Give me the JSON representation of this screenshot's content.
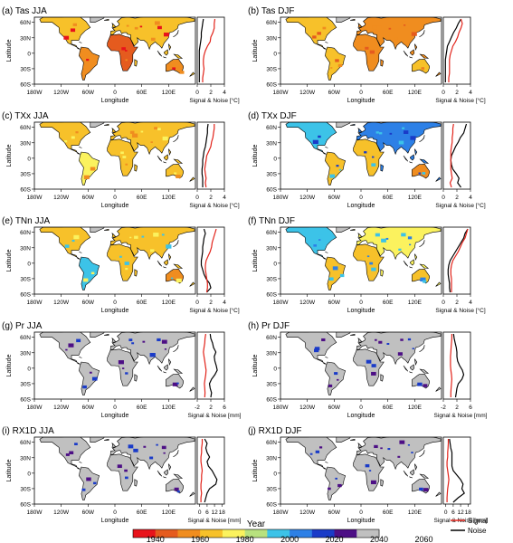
{
  "chart_data": [
    {
      "type": "map",
      "panel": "(a) Tas JJA",
      "xlabel": "Longitude",
      "ylabel": "Latitude",
      "x_ticks": [
        "180W",
        "120W",
        "60W",
        "0",
        "60E",
        "120E"
      ],
      "y_ticks": [
        "60N",
        "30N",
        "0",
        "30S",
        "60S"
      ],
      "side_xlabel": "Signal & Noise [°C]",
      "side_ticks": [
        "0",
        "2",
        "4"
      ],
      "side_xlim": [
        0,
        4
      ],
      "signal": [
        2.6,
        2.5,
        2.5,
        2.3,
        2.0,
        1.9,
        1.5,
        1.2,
        1.0,
        0.9,
        0.9,
        1.0,
        0.9,
        0.8,
        0.8
      ],
      "noise": [
        0.9,
        0.8,
        0.7,
        0.6,
        0.6,
        0.5,
        0.4,
        0.3,
        0.3,
        0.3,
        0.3,
        0.3,
        0.3,
        0.3,
        0.3
      ]
    },
    {
      "type": "map",
      "panel": "(b) Tas DJF",
      "xlabel": "Longitude",
      "ylabel": "Latitude",
      "x_ticks": [
        "180W",
        "120W",
        "60W",
        "0",
        "60E",
        "120E"
      ],
      "y_ticks": [
        "60N",
        "30N",
        "0",
        "30S",
        "60S"
      ],
      "side_xlabel": "Signal & Noise [°C]",
      "side_ticks": [
        "0",
        "2",
        "4"
      ],
      "side_xlim": [
        0,
        4
      ],
      "signal": [
        2.6,
        2.8,
        2.6,
        2.3,
        2.1,
        1.8,
        1.4,
        1.2,
        1.0,
        0.9,
        0.9,
        0.9,
        0.9,
        0.8,
        0.8
      ],
      "noise": [
        2.6,
        2.2,
        1.9,
        1.5,
        1.2,
        0.9,
        0.6,
        0.5,
        0.4,
        0.3,
        0.3,
        0.3,
        0.3,
        0.3,
        0.3
      ]
    },
    {
      "type": "map",
      "panel": "(c) TXx JJA",
      "xlabel": "Longitude",
      "ylabel": "Latitude",
      "x_ticks": [
        "180W",
        "120W",
        "60W",
        "0",
        "60E",
        "120E"
      ],
      "y_ticks": [
        "60N",
        "30N",
        "0",
        "30S",
        "60S"
      ],
      "side_xlabel": "Signal & Noise [°C]",
      "side_ticks": [
        "0",
        "2",
        "4"
      ],
      "side_xlim": [
        0,
        4
      ],
      "signal": [
        2.5,
        2.5,
        2.4,
        2.3,
        2.1,
        2.0,
        1.7,
        1.4,
        1.3,
        1.2,
        1.1,
        1.2,
        1.3,
        1.2,
        1.3
      ],
      "noise": [
        1.6,
        1.5,
        1.5,
        1.4,
        1.3,
        1.2,
        1.0,
        0.9,
        0.8,
        0.8,
        0.7,
        0.7,
        0.8,
        0.8,
        0.8
      ]
    },
    {
      "type": "map",
      "panel": "(d) TXx DJF",
      "xlabel": "Longitude",
      "ylabel": "Latitude",
      "x_ticks": [
        "180W",
        "120W",
        "60W",
        "0",
        "60E",
        "120E"
      ],
      "y_ticks": [
        "60N",
        "30N",
        "0",
        "30S",
        "60S"
      ],
      "side_xlabel": "Signal & Noise [°C]",
      "side_ticks": [
        "0",
        "2",
        "4"
      ],
      "side_xlim": [
        0,
        4
      ],
      "signal": [
        1.5,
        1.4,
        1.4,
        1.3,
        1.3,
        1.2,
        1.1,
        1.1,
        1.1,
        1.1,
        1.1,
        1.2,
        1.3,
        1.0,
        1.2
      ],
      "noise": [
        3.4,
        3.2,
        3.0,
        2.5,
        2.2,
        1.8,
        1.5,
        1.2,
        1.1,
        1.2,
        1.4,
        1.9,
        2.3,
        2.1,
        2.6
      ]
    },
    {
      "type": "map",
      "panel": "(e) TNn JJA",
      "xlabel": "Longitude",
      "ylabel": "Latitude",
      "x_ticks": [
        "180W",
        "120W",
        "60W",
        "0",
        "60E",
        "120E"
      ],
      "y_ticks": [
        "60N",
        "30N",
        "0",
        "30S",
        "60S"
      ],
      "side_xlabel": "Signal & Noise [°C]",
      "side_ticks": [
        "0",
        "2",
        "4"
      ],
      "side_xlim": [
        0,
        4
      ],
      "signal": [
        2.8,
        2.6,
        2.4,
        2.2,
        2.1,
        1.9,
        1.6,
        1.3,
        1.2,
        1.2,
        1.3,
        1.4,
        1.5,
        1.5,
        1.4
      ],
      "noise": [
        1.0,
        1.2,
        1.0,
        0.9,
        0.8,
        0.8,
        0.7,
        0.6,
        0.6,
        0.8,
        1.0,
        1.3,
        1.8,
        2.0,
        1.4
      ]
    },
    {
      "type": "map",
      "panel": "(f) TNn DJF",
      "xlabel": "Longitude",
      "ylabel": "Latitude",
      "x_ticks": [
        "180W",
        "120W",
        "60W",
        "0",
        "60E",
        "120E"
      ],
      "y_ticks": [
        "60N",
        "30N",
        "0",
        "30S",
        "60S"
      ],
      "side_xlabel": "Signal & Noise [°C]",
      "side_ticks": [
        "0",
        "2",
        "4"
      ],
      "side_xlim": [
        0,
        4
      ],
      "signal": [
        3.6,
        3.4,
        3.2,
        2.8,
        2.5,
        2.2,
        1.8,
        1.4,
        1.2,
        1.1,
        1.1,
        1.2,
        1.2,
        1.2,
        1.2
      ],
      "noise": [
        3.6,
        3.2,
        3.0,
        2.6,
        2.2,
        1.8,
        1.4,
        1.0,
        0.8,
        0.7,
        0.7,
        0.8,
        0.9,
        0.9,
        1.0
      ]
    },
    {
      "type": "map",
      "panel": "(g) Pr JJA",
      "xlabel": "Longitude",
      "ylabel": "Latitude",
      "x_ticks": [
        "180W",
        "120W",
        "60W",
        "0",
        "60E",
        "120E"
      ],
      "y_ticks": [
        "60N",
        "30N",
        "0",
        "30S",
        "60S"
      ],
      "side_xlabel": "Signal & Noise [mm]",
      "side_ticks": [
        "-2",
        "2",
        "6"
      ],
      "side_xlim": [
        -2,
        6
      ],
      "signal": [
        0.5,
        0.3,
        0.2,
        0.0,
        -0.2,
        0.0,
        0.2,
        0.4,
        0.6,
        0.5,
        0.3,
        0.1,
        0.2,
        0.3,
        0.2
      ],
      "noise": [
        1.8,
        2.0,
        2.5,
        2.8,
        3.5,
        3.0,
        3.2,
        3.6,
        3.9,
        3.2,
        2.2,
        1.6,
        1.8,
        2.2,
        2.0
      ]
    },
    {
      "type": "map",
      "panel": "(h) Pr DJF",
      "xlabel": "Longitude",
      "ylabel": "Latitude",
      "x_ticks": [
        "180W",
        "120W",
        "60W",
        "0",
        "60E",
        "120E"
      ],
      "y_ticks": [
        "60N",
        "30N",
        "0",
        "30S",
        "60S"
      ],
      "side_xlabel": "Signal & Noise [mm]",
      "side_ticks": [
        "-2",
        "2",
        "6"
      ],
      "side_xlim": [
        -2,
        6
      ],
      "signal": [
        0.5,
        0.5,
        0.4,
        0.3,
        0.2,
        0.1,
        0.1,
        0.1,
        0.2,
        0.4,
        0.5,
        0.4,
        0.3,
        0.2,
        0.2
      ],
      "noise": [
        1.0,
        1.2,
        1.5,
        1.8,
        2.0,
        2.0,
        2.2,
        2.8,
        3.6,
        4.0,
        3.5,
        2.4,
        2.0,
        1.8,
        1.6
      ]
    },
    {
      "type": "map",
      "panel": "(i) RX1D JJA",
      "xlabel": "Longitude",
      "ylabel": "Latitude",
      "x_ticks": [
        "180W",
        "120W",
        "60W",
        "0",
        "60E",
        "120E"
      ],
      "y_ticks": [
        "60N",
        "30N",
        "0",
        "30S",
        "60S"
      ],
      "side_xlabel": "Signal & Noise [mm]",
      "side_ticks": [
        "0",
        "6",
        "12",
        "18"
      ],
      "side_xlim": [
        -2,
        20
      ],
      "signal": [
        2,
        2,
        1.5,
        1.5,
        1,
        1,
        1.5,
        2,
        1.5,
        1.5,
        1,
        1,
        1.5,
        1,
        1
      ],
      "noise": [
        4,
        6,
        5,
        6,
        8,
        6,
        7,
        10,
        12,
        14,
        13,
        8,
        6,
        5,
        4
      ]
    },
    {
      "type": "map",
      "panel": "(j) RX1D DJF",
      "xlabel": "Longitude",
      "ylabel": "Latitude",
      "x_ticks": [
        "180W",
        "120W",
        "60W",
        "0",
        "60E",
        "120E"
      ],
      "y_ticks": [
        "60N",
        "30N",
        "0",
        "30S",
        "60S"
      ],
      "side_xlabel": "Signal & Noise [mm]",
      "side_ticks": [
        "0",
        "6",
        "12",
        "18"
      ],
      "side_xlim": [
        -2,
        20
      ],
      "signal": [
        2,
        2,
        1.8,
        1.5,
        1.5,
        1,
        1,
        1.5,
        2,
        2.5,
        2,
        1.5,
        1.2,
        1,
        1
      ],
      "noise": [
        3,
        3.5,
        4,
        5,
        5,
        5,
        5,
        6,
        9,
        12,
        14,
        13,
        15,
        10,
        6
      ]
    }
  ],
  "colorbar": {
    "title": "Year",
    "colors": [
      "#e8131b",
      "#e55b1e",
      "#f08d1f",
      "#f7c12a",
      "#fbf25e",
      "#b8e17e",
      "#3cc3e8",
      "#2d80e6",
      "#1a3bc8",
      "#4d0f85",
      "#c0c0c0"
    ],
    "labels": [
      "1940",
      "1960",
      "1980",
      "2000",
      "2020",
      "2040",
      "2060"
    ]
  },
  "legend": {
    "signal": "Signal",
    "noise": "Noise",
    "signal_color": "#e2231a",
    "noise_color": "#000000"
  },
  "ocean_color": "#ffffff",
  "missing_color": "#c0c0c0"
}
